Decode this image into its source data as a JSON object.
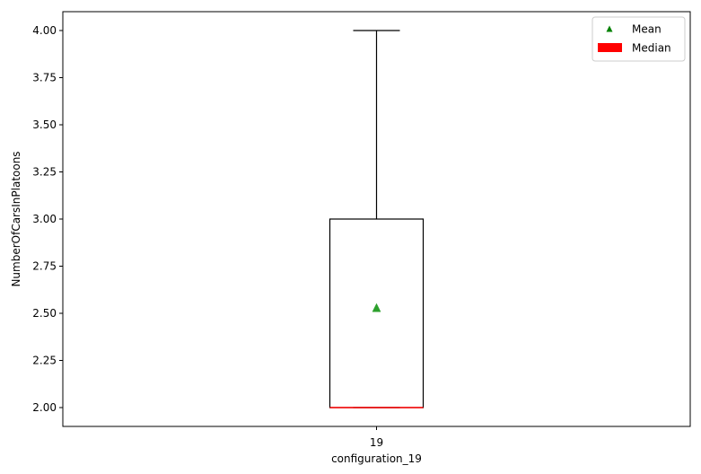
{
  "chart_data": {
    "type": "box",
    "xlabel": "configuration_19",
    "ylabel": "NumberOfCarsInPlatoons",
    "categories": [
      "19"
    ],
    "ylim": [
      1.9,
      4.1
    ],
    "yticks": [
      2.0,
      2.25,
      2.5,
      2.75,
      3.0,
      3.25,
      3.5,
      3.75,
      4.0
    ],
    "ytick_labels": [
      "2.00",
      "2.25",
      "2.50",
      "2.75",
      "3.00",
      "3.25",
      "3.50",
      "3.75",
      "4.00"
    ],
    "boxes": [
      {
        "category": "19",
        "whisker_low": 2.0,
        "q1": 2.0,
        "median": 2.0,
        "q3": 3.0,
        "whisker_high": 4.0,
        "mean": 2.53
      }
    ],
    "legend": {
      "position": "top-right",
      "entries": [
        {
          "label": "Mean",
          "marker": "triangle",
          "color": "#008000"
        },
        {
          "label": "Median",
          "marker": "patch",
          "color": "#ff0000"
        }
      ]
    },
    "colors": {
      "box": "#000000",
      "median": "#ff0000",
      "mean": "#2ca02c"
    },
    "grid": false
  }
}
